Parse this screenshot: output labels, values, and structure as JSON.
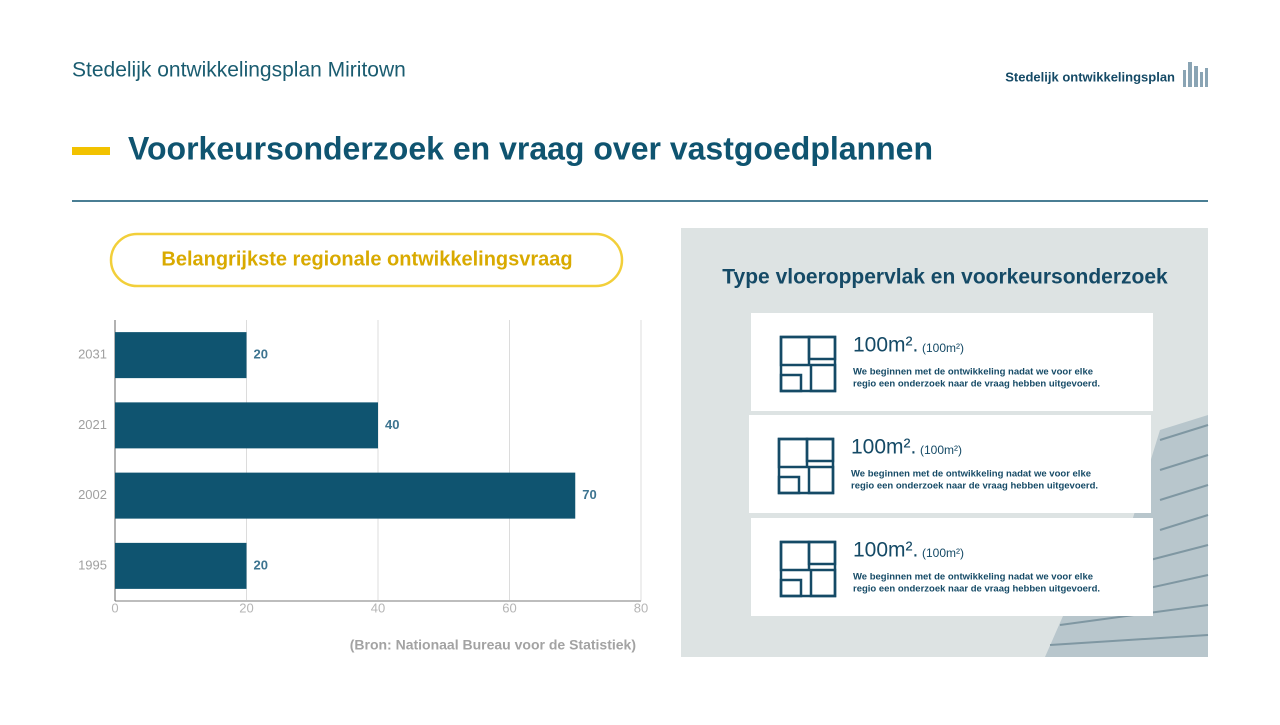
{
  "header": {
    "subtitle": "Stedelijk ontwikkelingsplan Miritown",
    "brand": "Stedelijk ontwikkelingsplan"
  },
  "title": "Voorkeursonderzoek en vraag over vastgoedplannen",
  "chart_data": {
    "type": "hbar",
    "title": "Belangrijkste regionale ontwikkelingsvraag",
    "categories": [
      "2031",
      "2021",
      "2002",
      "1995"
    ],
    "values": [
      20,
      40,
      70,
      20
    ],
    "color": "#0f5470",
    "xlim": [
      0,
      80
    ],
    "xticks": [
      0,
      20,
      40,
      60,
      80
    ],
    "grid": true,
    "source": "(Bron: Nationaal Bureau voor de Statistiek)"
  },
  "panel": {
    "title": "Type vloeroppervlak en voorkeursonderzoek",
    "cards": [
      {
        "area": "100m².",
        "note": "(100m²)",
        "line1": "We beginnen met de ontwikkeling nadat we voor elke",
        "line2": "regio een onderzoek naar de vraag hebben uitgevoerd."
      },
      {
        "area": "100m².",
        "note": "(100m²)",
        "line1": "We beginnen met de ontwikkeling nadat we voor elke",
        "line2": "regio een onderzoek naar de vraag hebben uitgevoerd."
      },
      {
        "area": "100m².",
        "note": "(100m²)",
        "line1": "We beginnen met de ontwikkeling nadat we voor elke",
        "line2": "regio een onderzoek naar de vraag hebben uitgevoerd."
      }
    ]
  }
}
